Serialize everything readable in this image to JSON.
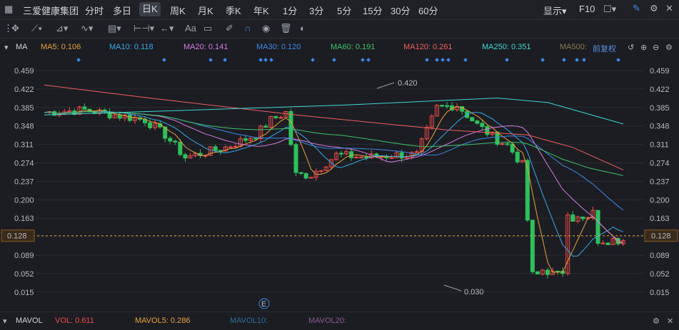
{
  "topbar": {
    "stock_name": "三爱健康集团",
    "periods": [
      "分时",
      "多日",
      "日K",
      "周K",
      "月K",
      "季K",
      "年K",
      "1分",
      "3分",
      "5分",
      "15分",
      "30分",
      "60分"
    ],
    "active_period": "日K",
    "display_label": "显示▾",
    "f10_label": "F10"
  },
  "toolbar": {
    "text_tool": "Aa"
  },
  "ma_bar": {
    "title": "MA",
    "ma5": "MA5: 0.106",
    "ma10": "MA10: 0.118",
    "ma20": "MA20: 0.141",
    "ma30": "MA30: 0.120",
    "ma60": "MA60: 0.191",
    "ma120": "MA120: 0.261",
    "ma250": "MA250: 0.351",
    "ma500": "MA500:",
    "adjust": "前复权",
    "colors": {
      "ma5": "#e8a23a",
      "ma10": "#3aa7e8",
      "ma20": "#d67ce0",
      "ma30": "#3f86e6",
      "ma60": "#3fc26b",
      "ma120": "#ef5f5f",
      "ma250": "#3fd7d2",
      "ma500": "#8a7a4a"
    }
  },
  "chart_data": {
    "type": "candlestick",
    "y_ticks": [
      "0.459",
      "0.422",
      "0.385",
      "0.348",
      "0.311",
      "0.274",
      "0.237",
      "0.200",
      "0.163",
      "0.126",
      "0.089",
      "0.052",
      "0.015"
    ],
    "ylim": [
      0.0,
      0.475
    ],
    "current_price_label": "0.128",
    "high_annotation": "0.420",
    "low_annotation": "0.030",
    "event_marker": "E",
    "colors": {
      "up": "#ef4a4a",
      "down": "#2fc05b",
      "grid": "#2a2d33",
      "current": "#e0a030"
    }
  },
  "vol_bar": {
    "title": "MAVOL",
    "vol": "VOL: 0.611",
    "mavol5": "MAVOL5: 0.286",
    "mavol10": "MAVOL10:",
    "mavol20": "MAVOL20:"
  }
}
